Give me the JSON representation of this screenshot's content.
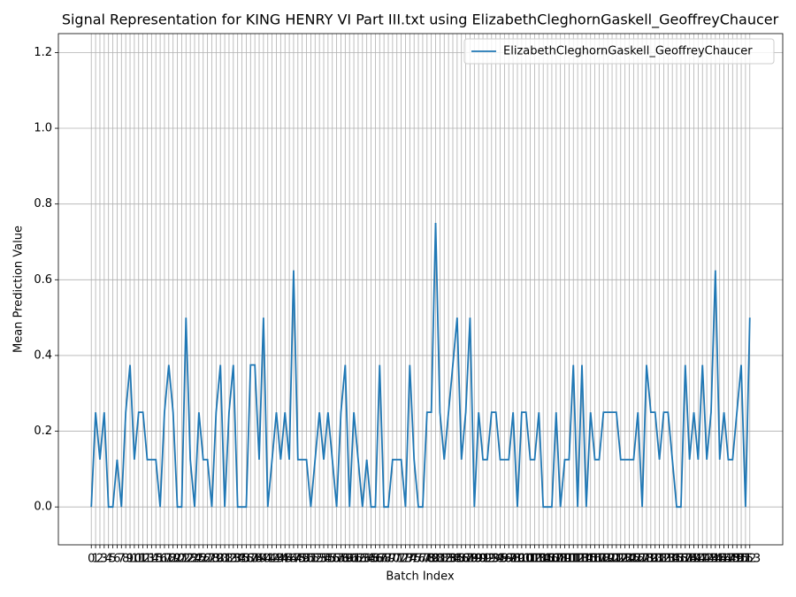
{
  "chart_data": {
    "type": "line",
    "title": "Signal Representation for KING HENRY VI Part III.txt using ElizabethCleghornGaskell_GeoffreyChaucer",
    "xlabel": "Batch Index",
    "ylabel": "Mean Prediction Value",
    "x": [
      0,
      1,
      2,
      3,
      4,
      5,
      6,
      7,
      8,
      9,
      10,
      11,
      12,
      13,
      14,
      15,
      16,
      17,
      18,
      19,
      20,
      21,
      22,
      23,
      24,
      25,
      26,
      27,
      28,
      29,
      30,
      31,
      32,
      33,
      34,
      35,
      36,
      37,
      38,
      39,
      40,
      41,
      42,
      43,
      44,
      45,
      46,
      47,
      48,
      49,
      50,
      51,
      52,
      53,
      54,
      55,
      56,
      57,
      58,
      59,
      60,
      61,
      62,
      63,
      64,
      65,
      66,
      67,
      68,
      69,
      70,
      71,
      72,
      73,
      74,
      75,
      76,
      77,
      78,
      79,
      80,
      81,
      82,
      83,
      84,
      85,
      86,
      87,
      88,
      89,
      90,
      91,
      92,
      93,
      94,
      95,
      96,
      97,
      98,
      99,
      100,
      101,
      102,
      103,
      104,
      105,
      106,
      107,
      108,
      109,
      110,
      111,
      112,
      113,
      114,
      115,
      116,
      117,
      118,
      119,
      120,
      121,
      122,
      123,
      124,
      125,
      126,
      127,
      128,
      129,
      130,
      131,
      132,
      133,
      134,
      135,
      136,
      137,
      138,
      139,
      140,
      141,
      142,
      143,
      144,
      145,
      146,
      147,
      148,
      149,
      150,
      151,
      152,
      153
    ],
    "series": [
      {
        "name": "ElizabethCleghornGaskell_GeoffreyChaucer",
        "color": "#1f77b4",
        "values": [
          0,
          0.25,
          0.125,
          0.25,
          0,
          0,
          0.125,
          0,
          0.25,
          0.375,
          0.125,
          0.25,
          0.25,
          0.125,
          0.125,
          0.125,
          0,
          0.25,
          0.375,
          0.25,
          0,
          0,
          0.5,
          0.125,
          0,
          0.25,
          0.125,
          0.125,
          0,
          0.25,
          0.375,
          0,
          0.25,
          0.375,
          0,
          0,
          0,
          0.375,
          0.375,
          0.125,
          0.5,
          0,
          0.125,
          0.25,
          0.125,
          0.25,
          0.125,
          0.625,
          0.125,
          0.125,
          0.125,
          0,
          0.125,
          0.25,
          0.125,
          0.25,
          0.125,
          0,
          0.25,
          0.375,
          0,
          0.25,
          0.125,
          0,
          0.125,
          0,
          0,
          0.375,
          0,
          0,
          0.125,
          0.125,
          0.125,
          0,
          0.375,
          0.125,
          0,
          0,
          0.25,
          0.25,
          0.75,
          0.25,
          0.125,
          0.25,
          0.375,
          0.5,
          0.125,
          0.25,
          0.5,
          0,
          0.25,
          0.125,
          0.125,
          0.25,
          0.25,
          0.125,
          0.125,
          0.125,
          0.25,
          0,
          0.25,
          0.25,
          0.125,
          0.125,
          0.25,
          0,
          0,
          0,
          0.25,
          0,
          0.125,
          0.125,
          0.375,
          0,
          0.375,
          0,
          0.25,
          0.125,
          0.125,
          0.25,
          0.25,
          0.25,
          0.25,
          0.125,
          0.125,
          0.125,
          0.125,
          0.25,
          0,
          0.375,
          0.25,
          0.25,
          0.125,
          0.25,
          0.25,
          0.125,
          0,
          0,
          0.375,
          0.125,
          0.25,
          0.125,
          0.375,
          0.125,
          0.25,
          0.625,
          0.125,
          0.25,
          0.125,
          0.125,
          0.25,
          0.375,
          0,
          0.5
        ]
      }
    ],
    "xlim": [
      -7.65,
      160.65
    ],
    "xticks": [
      0,
      1,
      2,
      3,
      4,
      5,
      6,
      7,
      8,
      9,
      10,
      11,
      12,
      13,
      14,
      15,
      16,
      17,
      18,
      19,
      20,
      21,
      22,
      23,
      24,
      25,
      26,
      27,
      28,
      29,
      30,
      31,
      32,
      33,
      34,
      35,
      36,
      37,
      38,
      39,
      40,
      41,
      42,
      43,
      44,
      45,
      46,
      47,
      48,
      49,
      50,
      51,
      52,
      53,
      54,
      55,
      56,
      57,
      58,
      59,
      60,
      61,
      62,
      63,
      64,
      65,
      66,
      67,
      68,
      69,
      70,
      71,
      72,
      73,
      74,
      75,
      76,
      77,
      78,
      79,
      80,
      81,
      82,
      83,
      84,
      85,
      86,
      87,
      88,
      89,
      90,
      91,
      92,
      93,
      94,
      95,
      96,
      97,
      98,
      99,
      100,
      101,
      102,
      103,
      104,
      105,
      106,
      107,
      108,
      109,
      110,
      111,
      112,
      113,
      114,
      115,
      116,
      117,
      118,
      119,
      120,
      121,
      122,
      123,
      124,
      125,
      126,
      127,
      128,
      129,
      130,
      131,
      132,
      133,
      134,
      135,
      136,
      137,
      138,
      139,
      140,
      141,
      142,
      143,
      144,
      145,
      146,
      147,
      148,
      149,
      150,
      151,
      152,
      153
    ],
    "ylim": [
      -0.1,
      1.25
    ],
    "yticks": [
      {
        "value": 0,
        "label": "0.0"
      },
      0.2,
      0.4,
      0.6,
      0.8,
      {
        "value": 1,
        "label": "1.0"
      },
      1.2
    ],
    "grid": true,
    "legend": "upper right"
  }
}
